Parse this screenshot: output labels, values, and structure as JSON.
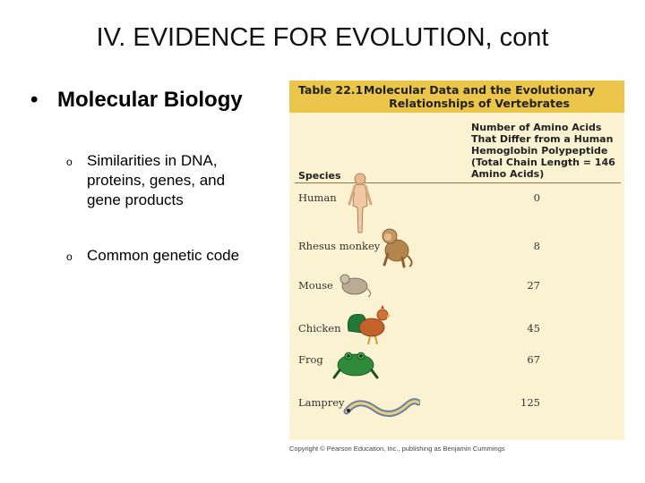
{
  "slide": {
    "title": "IV.  EVIDENCE FOR EVOLUTION, cont",
    "bullet": {
      "marker": "•",
      "text": "Molecular Biology"
    },
    "sub_bullets": [
      {
        "marker": "o",
        "text": "Similarities in DNA, proteins, genes, and gene products"
      },
      {
        "marker": "o",
        "text": "Common genetic code"
      }
    ]
  },
  "table": {
    "number": "Table 22.1",
    "title": "Molecular Data and the Evolutionary Relationships of Vertebrates",
    "col_species": "Species",
    "col_value": "Number of Amino Acids That Differ from a Human Hemoglobin Polypeptide (Total Chain Length = 146 Amino Acids)",
    "rows": [
      {
        "species": "Human",
        "value": "0",
        "icon": "human-figure-icon"
      },
      {
        "species": "Rhesus monkey",
        "value": "8",
        "icon": "rhesus-monkey-icon"
      },
      {
        "species": "Mouse",
        "value": "27",
        "icon": "mouse-icon"
      },
      {
        "species": "Chicken",
        "value": "45",
        "icon": "chicken-icon"
      },
      {
        "species": "Frog",
        "value": "67",
        "icon": "frog-icon"
      },
      {
        "species": "Lamprey",
        "value": "125",
        "icon": "lamprey-icon"
      }
    ],
    "copyright": "Copyright © Pearson Education, Inc., publishing as Benjamin Cummings"
  },
  "colors": {
    "header_gold": "#ecc64a",
    "panel_cream": "#fbf2d2",
    "frog_green": "#2f8a3a",
    "monkey_brown": "#b5854e"
  }
}
